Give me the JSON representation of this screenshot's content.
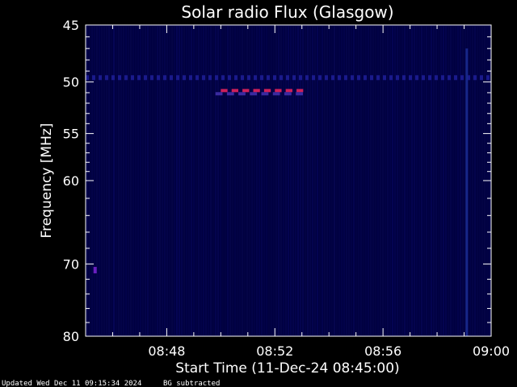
{
  "chart_data": {
    "type": "heatmap",
    "title": "Solar radio Flux (Glasgow)",
    "xlabel": "Start Time (11-Dec-24 08:45:00)",
    "ylabel": "Frequency [MHz]",
    "x_range": [
      "08:45",
      "09:00"
    ],
    "y_range_mhz": [
      45,
      80
    ],
    "y_scale": "log",
    "x_tick_labels": [
      "08:48",
      "08:52",
      "08:56",
      "09:00"
    ],
    "x_tick_minutes": [
      3,
      7,
      11,
      15
    ],
    "y_tick_labels": [
      "45",
      "50",
      "55",
      "60",
      "70",
      "80"
    ],
    "y_tick_values": [
      45,
      50,
      55,
      60,
      70,
      80
    ],
    "background_color": "#000040",
    "features": [
      {
        "kind": "horizontal-band",
        "freq_mhz": 49.6,
        "t_start_min": 0,
        "t_end_min": 15,
        "color": "#1a1a8c"
      },
      {
        "kind": "dashed-burst",
        "freq_mhz": 50.8,
        "t_start_min": 5.0,
        "t_end_min": 8.2,
        "segments": 8,
        "color": "#cc1f5a"
      },
      {
        "kind": "dashed-burst",
        "freq_mhz": 51.1,
        "t_start_min": 4.8,
        "t_end_min": 8.2,
        "segments": 8,
        "color": "#3a2aa0"
      },
      {
        "kind": "spot",
        "freq_mhz": 70.8,
        "t_min": 0.35,
        "color": "#6a1fc0"
      },
      {
        "kind": "vertical-streak",
        "t_min": 14.1,
        "f_start_mhz": 47,
        "f_end_mhz": 80,
        "color": "#1a2a90"
      }
    ]
  },
  "footer": {
    "updated": "Updated Wed Dec 11 09:15:34 2024",
    "note": "BG subtracted"
  }
}
